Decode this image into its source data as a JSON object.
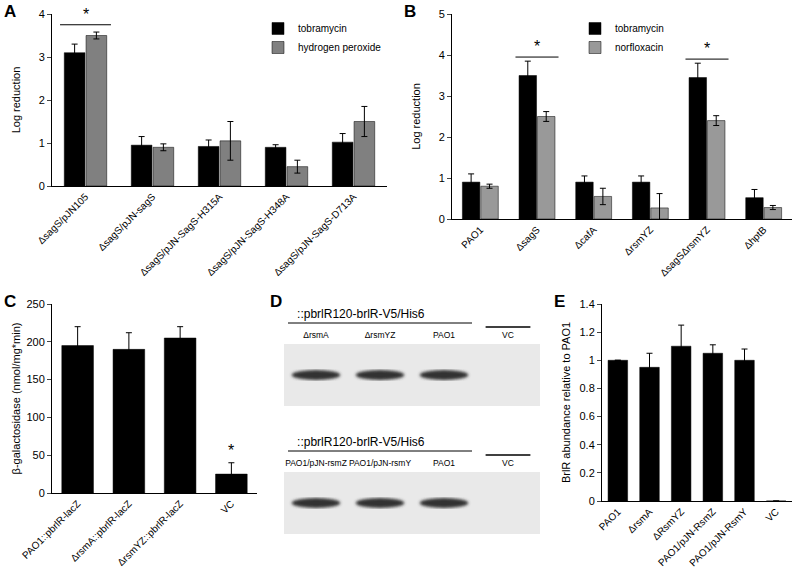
{
  "chart_data": [
    {
      "label": "A",
      "type": "bar",
      "y_label": "Log reduction",
      "categories": [
        "ΔsagS/pJN105",
        "ΔsagS/pJN-sagS",
        "ΔsagS/pJN-SagS-H315A",
        "ΔsagS/pJN-SagS-H348A",
        "ΔsagS/pJN-SagS-D713A"
      ],
      "series": [
        {
          "name": "tobramycin",
          "color": "#000000",
          "values": [
            3.1,
            0.95,
            0.92,
            0.9,
            1.02
          ],
          "errors": [
            0.2,
            0.2,
            0.15,
            0.06,
            0.2
          ]
        },
        {
          "name": "hydrogen peroxide",
          "color": "#808080",
          "values": [
            3.5,
            0.9,
            1.05,
            0.45,
            1.5
          ],
          "errors": [
            0.08,
            0.08,
            0.45,
            0.15,
            0.35
          ]
        }
      ],
      "ylim": [
        0,
        4
      ],
      "yticks": [
        0,
        1,
        2,
        3,
        4
      ],
      "grid": false,
      "legend": "upper right",
      "annotations": [
        {
          "text": "*",
          "category": "ΔsagS/pJN105",
          "y": 3.75
        }
      ]
    },
    {
      "label": "B",
      "type": "bar",
      "y_label": "Log reduction",
      "categories": [
        "PAO1",
        "ΔsagS",
        "ΔcafA",
        "ΔrsmYZ",
        "ΔsagSΔrsmYZ",
        "ΔhptB"
      ],
      "series": [
        {
          "name": "tobramycin",
          "color": "#000000",
          "values": [
            0.9,
            3.5,
            0.9,
            0.9,
            3.45,
            0.52
          ],
          "errors": [
            0.2,
            0.35,
            0.15,
            0.15,
            0.35,
            0.2
          ]
        },
        {
          "name": "norfloxacin",
          "color": "#999999",
          "values": [
            0.8,
            2.5,
            0.55,
            0.27,
            2.4,
            0.28
          ],
          "errors": [
            0.05,
            0.12,
            0.2,
            0.35,
            0.12,
            0.05
          ]
        }
      ],
      "ylim": [
        0,
        5
      ],
      "yticks": [
        0,
        1,
        2,
        3,
        4,
        5
      ],
      "grid": false,
      "legend": "upper center",
      "annotations": [
        {
          "text": "*",
          "category": "ΔsagS",
          "y": 3.95
        },
        {
          "text": "*",
          "category": "ΔsagSΔrsmYZ",
          "y": 3.9
        }
      ]
    },
    {
      "label": "C",
      "type": "bar",
      "y_label": "β-galactosidase (nmol/mg*min)",
      "categories": [
        "PAO1::pbrlR-lacZ",
        "ΔrsmA::pbrlR-lacZ",
        "ΔrsmYZ::pbrlR-lacZ",
        "VC"
      ],
      "values": [
        195,
        190,
        205,
        25
      ],
      "errors": [
        25,
        22,
        15,
        15
      ],
      "color": "#000000",
      "ylim": [
        0,
        250
      ],
      "yticks": [
        0,
        50,
        100,
        150,
        200,
        250
      ],
      "grid": false,
      "annotations": [
        {
          "text": "*",
          "category": "VC",
          "y": 42
        }
      ]
    },
    {
      "label": "E",
      "type": "bar",
      "y_label": "BrlR abundance relative to PAO1",
      "categories": [
        "PAO1",
        "ΔrsmA",
        "ΔRsmYZ",
        "PAO1/pJN-RsmZ",
        "PAO1/pJN-RsmY",
        "VC"
      ],
      "values": [
        1,
        0.95,
        1.1,
        1.05,
        1,
        0
      ],
      "errors": [
        0,
        0.1,
        0.15,
        0.06,
        0.08,
        0
      ],
      "color": "#000000",
      "ylim": [
        0,
        1.4
      ],
      "yticks": [
        0,
        0.2,
        0.4,
        0.6,
        0.8,
        1,
        1.2,
        1.4
      ],
      "grid": false
    }
  ],
  "blot_panel": {
    "label": "D",
    "blots": [
      {
        "header": "::pbrlR120-brlR-V5/His6",
        "lanes": [
          {
            "label": "ΔrsmA",
            "band": true
          },
          {
            "label": "ΔrsmYZ",
            "band": true
          },
          {
            "label": "PAO1",
            "band": true
          },
          {
            "label": "VC",
            "band": false
          }
        ]
      },
      {
        "header": "::pbrlR120-brlR-V5/His6",
        "lanes": [
          {
            "label": "PAO1/pJN-rsmZ",
            "band": true
          },
          {
            "label": "PAO1/pJN-rsmY",
            "band": true
          },
          {
            "label": "PAO1",
            "band": true
          },
          {
            "label": "VC",
            "band": false
          }
        ]
      }
    ]
  }
}
